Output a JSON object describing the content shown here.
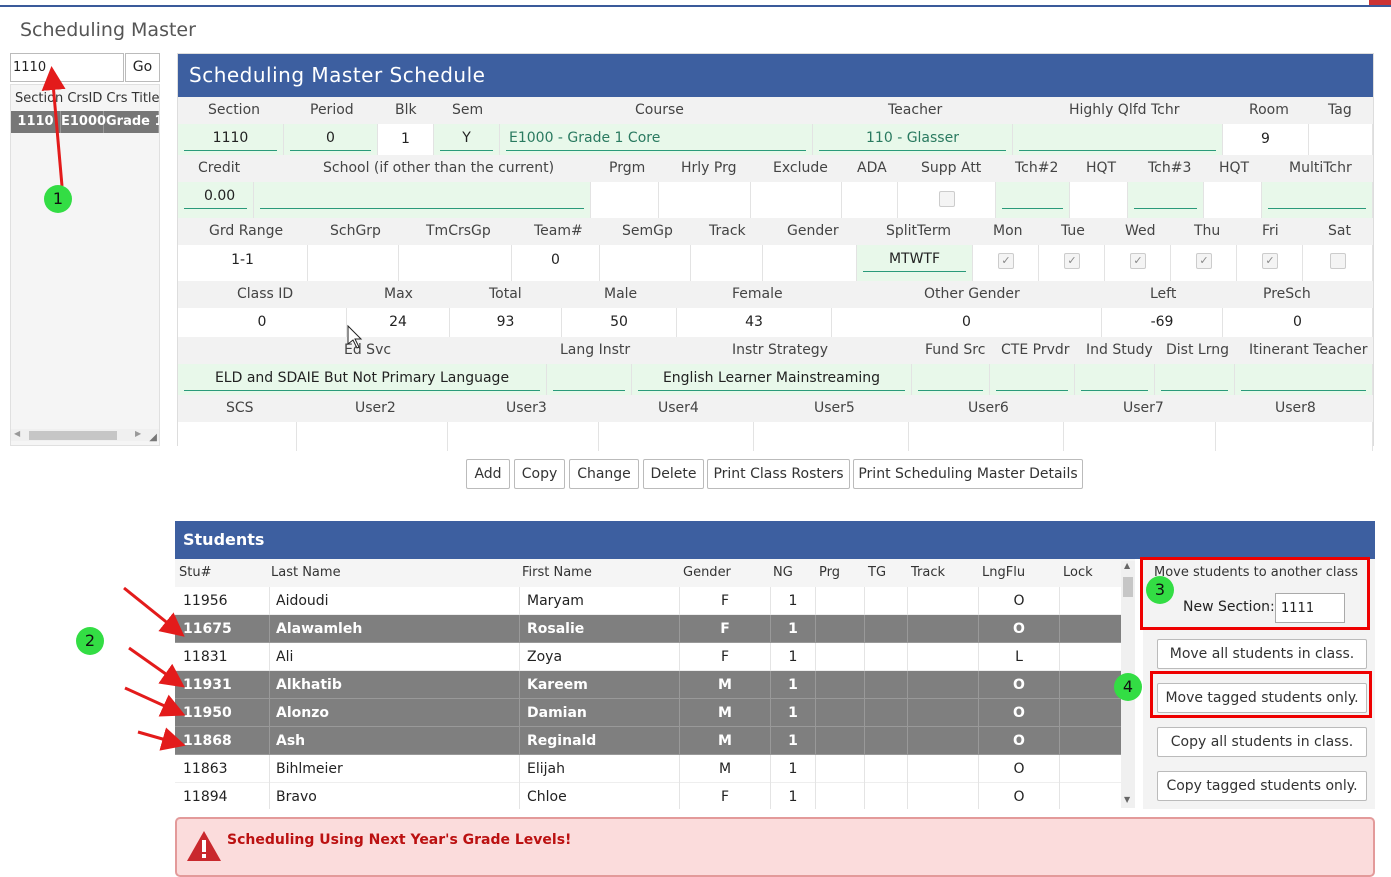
{
  "page_title": "Scheduling Master",
  "search": {
    "value": "1110",
    "go_label": "Go"
  },
  "left_grid": {
    "headers": [
      "Section",
      "CrsID",
      "Crs Title"
    ],
    "row": [
      "1110",
      "E1000",
      "Grade 1"
    ]
  },
  "schedule": {
    "title": "Scheduling Master Schedule",
    "row1": {
      "labels": [
        "Section",
        "Period",
        "Blk",
        "Sem",
        "Course",
        "Teacher",
        "Highly Qlfd Tchr",
        "Room",
        "Tag"
      ],
      "values": {
        "section": "1110",
        "period": "0",
        "blk": "1",
        "sem": "Y",
        "course": "E1000 - Grade 1 Core",
        "teacher": "110 - Glasser",
        "hq": "",
        "room": "9",
        "tag": ""
      }
    },
    "row2": {
      "labels": [
        "Credit",
        "School (if other than the current)",
        "Prgm",
        "Hrly Prg",
        "Exclude",
        "ADA",
        "Supp Att",
        "Tch#2",
        "HQT",
        "Tch#3",
        "HQT",
        "MultiTchr"
      ],
      "values": {
        "credit": "0.00"
      }
    },
    "row3": {
      "labels": [
        "Grd Range",
        "SchGrp",
        "TmCrsGp",
        "Team#",
        "SemGp",
        "Track",
        "Gender",
        "SplitTerm",
        "Mon",
        "Tue",
        "Wed",
        "Thu",
        "Fri",
        "Sat"
      ],
      "values": {
        "grd_range": "1-1",
        "team": "0",
        "split_term": "MTWTF"
      },
      "days_checked": {
        "mon": true,
        "tue": true,
        "wed": true,
        "thu": true,
        "fri": true,
        "sat": false
      }
    },
    "row4": {
      "labels": [
        "Class ID",
        "Max",
        "Total",
        "Male",
        "Female",
        "Other Gender",
        "Left",
        "PreSch"
      ],
      "values": {
        "class_id": "0",
        "max": "24",
        "total": "93",
        "male": "50",
        "female": "43",
        "other": "0",
        "left": "-69",
        "presch": "0"
      }
    },
    "row5": {
      "labels": [
        "Ed Svc",
        "Lang Instr",
        "Instr Strategy",
        "Fund Src",
        "CTE Prvdr",
        "Ind Study",
        "Dist Lrng",
        "Itinerant Teacher"
      ],
      "values": {
        "ed_svc": "ELD and SDAIE But Not Primary Language",
        "instr_strategy": "English Learner Mainstreaming"
      }
    },
    "row6": {
      "labels": [
        "SCS",
        "User2",
        "User3",
        "User4",
        "User5",
        "User6",
        "User7",
        "User8"
      ]
    }
  },
  "buttons": {
    "add": "Add",
    "copy": "Copy",
    "change": "Change",
    "delete": "Delete",
    "print_rosters": "Print Class Rosters",
    "print_details": "Print Scheduling Master Details"
  },
  "students": {
    "title": "Students",
    "headers": [
      "Stu#",
      "Last Name",
      "First Name",
      "Gender",
      "NG",
      "Prg",
      "TG",
      "Track",
      "LngFlu",
      "Lock"
    ],
    "rows": [
      {
        "stu": "11956",
        "last": "Aidoudi",
        "first": "Maryam",
        "gender": "F",
        "ng": "1",
        "lngflu": "O",
        "selected": false
      },
      {
        "stu": "11675",
        "last": "Alawamleh",
        "first": "Rosalie",
        "gender": "F",
        "ng": "1",
        "lngflu": "O",
        "selected": true
      },
      {
        "stu": "11831",
        "last": "Ali",
        "first": "Zoya",
        "gender": "F",
        "ng": "1",
        "lngflu": "L",
        "selected": false
      },
      {
        "stu": "11931",
        "last": "Alkhatib",
        "first": "Kareem",
        "gender": "M",
        "ng": "1",
        "lngflu": "O",
        "selected": true
      },
      {
        "stu": "11950",
        "last": "Alonzo",
        "first": "Damian",
        "gender": "M",
        "ng": "1",
        "lngflu": "O",
        "selected": true
      },
      {
        "stu": "11868",
        "last": "Ash",
        "first": "Reginald",
        "gender": "M",
        "ng": "1",
        "lngflu": "O",
        "selected": true
      },
      {
        "stu": "11863",
        "last": "Bihlmeier",
        "first": "Elijah",
        "gender": "M",
        "ng": "1",
        "lngflu": "O",
        "selected": false
      },
      {
        "stu": "11894",
        "last": "Bravo",
        "first": "Chloe",
        "gender": "F",
        "ng": "1",
        "lngflu": "O",
        "selected": false
      }
    ]
  },
  "move_panel": {
    "title": "Move students to another class",
    "new_section_label": "New Section:",
    "new_section_value": "1111",
    "move_all": "Move all students in class.",
    "move_tagged": "Move tagged students only.",
    "copy_all": "Copy all students in class.",
    "copy_tagged": "Copy tagged students only."
  },
  "warning": {
    "text": "Scheduling Using Next Year's Grade Levels!"
  },
  "annotations": {
    "step1": "1",
    "step2": "2",
    "step3": "3",
    "step4": "4"
  },
  "colors": {
    "header_blue": "#3d5fa0",
    "selected_row": "#7f7f7f",
    "highlight_red": "#ee0000",
    "badge_green": "#33dd44",
    "field_green": "#e8f8ea"
  }
}
